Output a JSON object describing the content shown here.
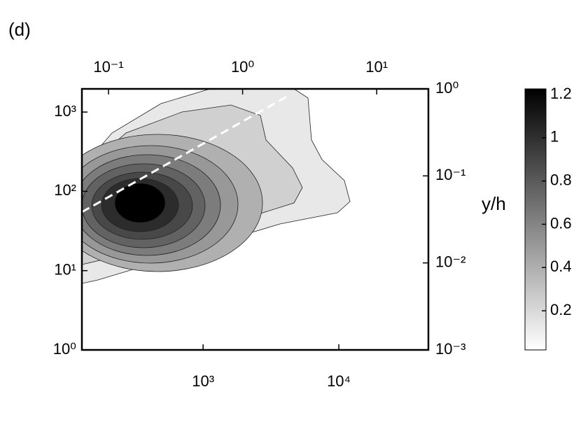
{
  "chart_data": {
    "type": "contour",
    "panel_label": "(d)",
    "y2_label": "y/h",
    "xscale": "log",
    "yscale": "log",
    "xlim": [
      128,
      45700
    ],
    "xticks": [
      {
        "value": 1000,
        "label": "10³"
      },
      {
        "value": 10000,
        "label": "10⁴"
      }
    ],
    "ylim": [
      1,
      1960
    ],
    "yticks": [
      {
        "value": 1,
        "label": "10⁰"
      },
      {
        "value": 10,
        "label": "10¹"
      },
      {
        "value": 100,
        "label": "10²"
      },
      {
        "value": 1000,
        "label": "10³"
      }
    ],
    "x2lim": [
      0.0633,
      24.3
    ],
    "x2ticks": [
      {
        "value": 0.1,
        "label": "10⁻¹"
      },
      {
        "value": 1,
        "label": "10⁰"
      },
      {
        "value": 10,
        "label": "10¹"
      }
    ],
    "y2lim": [
      0.001,
      1
    ],
    "y2ticks": [
      {
        "value": 0.001,
        "label": "10⁻³"
      },
      {
        "value": 0.01,
        "label": "10⁻²"
      },
      {
        "value": 0.1,
        "label": "10⁻¹"
      },
      {
        "value": 1,
        "label": "10⁰"
      }
    ],
    "colorbar": {
      "lim": [
        0.019,
        1.226
      ],
      "ticks": [
        0.2,
        0.4,
        0.6,
        0.8,
        1,
        1.2
      ],
      "colors": [
        "#ffffff",
        "#000000"
      ]
    }
  }
}
